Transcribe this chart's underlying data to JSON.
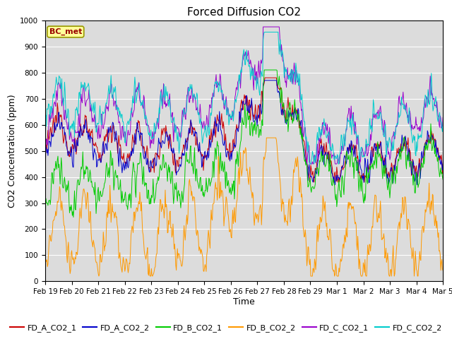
{
  "title": "Forced Diffusion CO2",
  "xlabel": "Time",
  "ylabel": "CO2 Concentration (ppm)",
  "ylim": [
    0,
    1000
  ],
  "background_color": "#dcdcdc",
  "fig_background": "#ffffff",
  "grid_color": "#ffffff",
  "series": [
    {
      "label": "FD_A_CO2_1",
      "color": "#cc0000"
    },
    {
      "label": "FD_A_CO2_2",
      "color": "#0000cc"
    },
    {
      "label": "FD_B_CO2_1",
      "color": "#00cc00"
    },
    {
      "label": "FD_B_CO2_2",
      "color": "#ff9900"
    },
    {
      "label": "FD_C_CO2_1",
      "color": "#9900cc"
    },
    {
      "label": "FD_C_CO2_2",
      "color": "#00cccc"
    }
  ],
  "xtick_labels": [
    "Feb 19",
    "Feb 20",
    "Feb 21",
    "Feb 22",
    "Feb 23",
    "Feb 24",
    "Feb 25",
    "Feb 26",
    "Feb 27",
    "Feb 28",
    "Feb 29",
    "Mar 1",
    "Mar 2",
    "Mar 3",
    "Mar 4",
    "Mar 5"
  ],
  "annotation_text": "BC_met",
  "annotation_box_color": "#ffff99",
  "annotation_text_color": "#990000",
  "annotation_border_color": "#999900",
  "legend_fontsize": 8,
  "title_fontsize": 11,
  "axis_label_fontsize": 9,
  "tick_fontsize": 7.5
}
